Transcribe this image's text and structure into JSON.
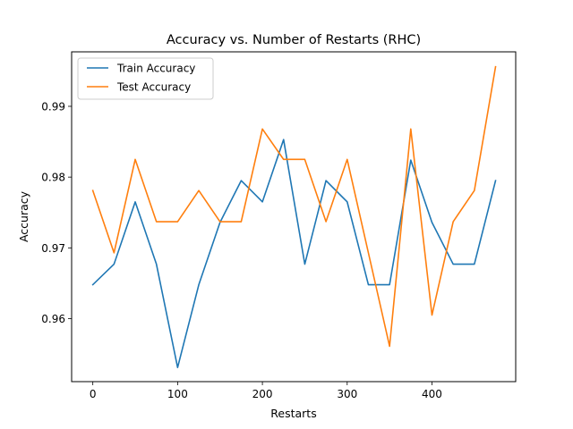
{
  "chart_data": {
    "type": "line",
    "title": "Accuracy vs. Number of Restarts (RHC)",
    "xlabel": "Restarts",
    "ylabel": "Accuracy",
    "xlim": [
      -25,
      498.75
    ],
    "ylim": [
      0.9511,
      0.9977
    ],
    "xticks": [
      0,
      100,
      200,
      300,
      400
    ],
    "yticks": [
      0.96,
      0.97,
      0.98,
      0.99
    ],
    "xtick_labels": [
      "0",
      "100",
      "200",
      "300",
      "400"
    ],
    "ytick_labels": [
      "0.96",
      "0.97",
      "0.98",
      "0.99"
    ],
    "grid": false,
    "legend": "top-left",
    "x": [
      0,
      25,
      50,
      75,
      100,
      125,
      150,
      175,
      200,
      225,
      250,
      275,
      300,
      325,
      350,
      375,
      400,
      425,
      450,
      475
    ],
    "series": [
      {
        "name": "Train Accuracy",
        "color": "#1f77b4",
        "values": [
          0.9648,
          0.9677,
          0.9765,
          0.9677,
          0.9531,
          0.9648,
          0.9736,
          0.9795,
          0.9765,
          0.9853,
          0.9677,
          0.9795,
          0.9765,
          0.9648,
          0.9648,
          0.9824,
          0.9736,
          0.9677,
          0.9677,
          0.9795
        ]
      },
      {
        "name": "Test Accuracy",
        "color": "#ff7f0e",
        "values": [
          0.9781,
          0.9693,
          0.9825,
          0.9737,
          0.9737,
          0.9781,
          0.9737,
          0.9737,
          0.9868,
          0.9825,
          0.9825,
          0.9737,
          0.9825,
          0.9693,
          0.9561,
          0.9868,
          0.9605,
          0.9737,
          0.9781,
          0.9956
        ]
      }
    ]
  }
}
